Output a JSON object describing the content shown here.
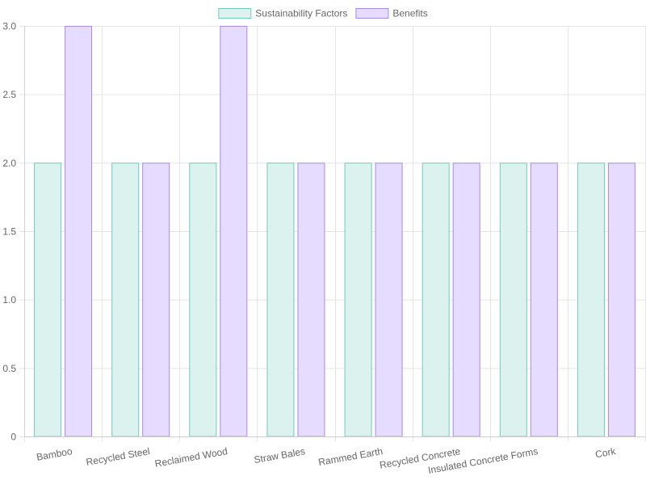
{
  "chart_data": {
    "type": "bar",
    "categories": [
      "Bamboo",
      "Recycled Steel",
      "Reclaimed Wood",
      "Straw Bales",
      "Rammed Earth",
      "Recycled Concrete",
      "Insulated Concrete Forms",
      "Cork"
    ],
    "series": [
      {
        "name": "Sustainability Factors",
        "values": [
          2,
          2,
          2,
          2,
          2,
          2,
          2,
          2
        ],
        "fill": "#dbf2ef",
        "stroke": "#72cbc1"
      },
      {
        "name": "Benefits",
        "values": [
          3,
          2,
          3,
          2,
          2,
          2,
          2,
          2
        ],
        "fill": "#e6dcff",
        "stroke": "#a98be6"
      }
    ],
    "ylim": [
      0,
      3
    ],
    "yticks": [
      0,
      0.5,
      1,
      1.5,
      2,
      2.5,
      3
    ],
    "ytick_labels": [
      "0",
      "0.5",
      "1.0",
      "1.5",
      "2.0",
      "2.5",
      "3.0"
    ],
    "grid": true,
    "legend_position": "top-center",
    "title": "",
    "xlabel": "",
    "ylabel": ""
  }
}
